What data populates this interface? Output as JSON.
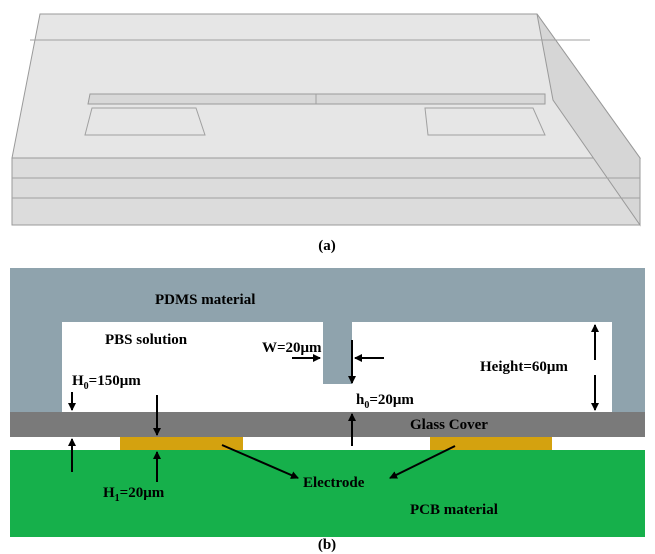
{
  "captions": {
    "a": "(a)",
    "b": "(b)"
  },
  "labels": {
    "pdms": "PDMS material",
    "pbs": "PBS solution",
    "width": "W=20μm",
    "height": "Height=60μm",
    "H0": {
      "base": "H",
      "sub": "0",
      "rest": "=150μm"
    },
    "h0": {
      "base": "h",
      "sub": "0",
      "rest": "=20μm"
    },
    "glass": "Glass Cover",
    "H1": {
      "base": "H",
      "sub": "1",
      "rest": "=20μm"
    },
    "electrode": "Electrode",
    "pcb": "PCB material"
  }
}
